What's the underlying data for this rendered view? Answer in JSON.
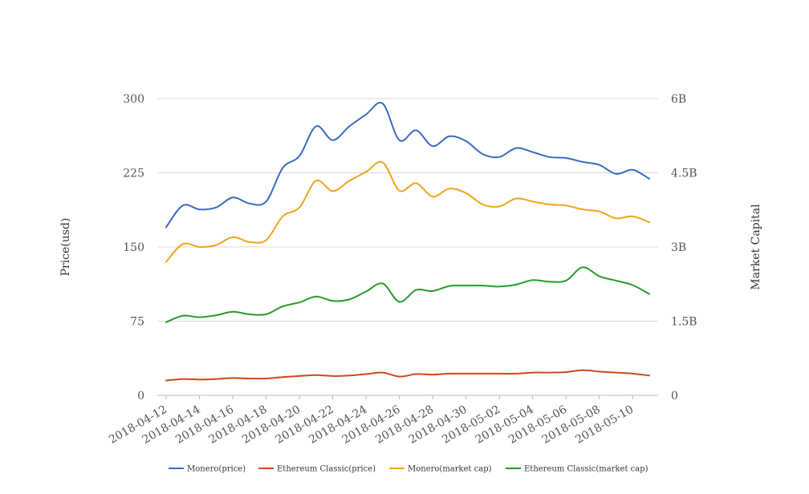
{
  "chart_data": {
    "type": "line",
    "x": [
      "2018-04-12",
      "2018-04-13",
      "2018-04-14",
      "2018-04-15",
      "2018-04-16",
      "2018-04-17",
      "2018-04-18",
      "2018-04-19",
      "2018-04-20",
      "2018-04-21",
      "2018-04-22",
      "2018-04-23",
      "2018-04-24",
      "2018-04-25",
      "2018-04-26",
      "2018-04-27",
      "2018-04-28",
      "2018-04-29",
      "2018-04-30",
      "2018-05-01",
      "2018-05-02",
      "2018-05-03",
      "2018-05-04",
      "2018-05-05",
      "2018-05-06",
      "2018-05-07",
      "2018-05-08",
      "2018-05-09",
      "2018-05-10",
      "2018-05-11"
    ],
    "x_tick_labels": [
      "2018-04-12",
      "2018-04-14",
      "2018-04-16",
      "2018-04-18",
      "2018-04-20",
      "2018-04-22",
      "2018-04-24",
      "2018-04-26",
      "2018-04-28",
      "2018-04-30",
      "2018-05-02",
      "2018-05-04",
      "2018-05-06",
      "2018-05-08",
      "2018-05-10"
    ],
    "ylabel_left": "Price(usd)",
    "ylabel_right": "Market Capital",
    "ylim_left": [
      0,
      300
    ],
    "ylim_right": [
      0,
      6000000000
    ],
    "yticks_left": [
      "0",
      "75",
      "150",
      "225",
      "300"
    ],
    "yticks_right": [
      "0",
      "1.5B",
      "3B",
      "4.5B",
      "6B"
    ],
    "grid": true,
    "legend_position": "bottom",
    "series": [
      {
        "name": "Monero(price)",
        "axis": "left",
        "color": "#3a6bbf",
        "values": [
          170,
          192,
          188,
          190,
          200,
          194,
          196,
          230,
          242,
          272,
          258,
          272,
          284,
          295,
          258,
          268,
          252,
          262,
          257,
          244,
          241,
          250,
          246,
          241,
          240,
          236,
          233,
          224,
          228,
          219
        ]
      },
      {
        "name": "Ethereum Classic(price)",
        "axis": "left",
        "color": "#cc4a1a",
        "values": [
          15,
          16.5,
          16,
          16.5,
          17.5,
          17,
          17,
          18.5,
          19.5,
          20.5,
          19.5,
          20,
          21.5,
          23,
          19,
          21.5,
          21,
          22,
          22,
          22,
          22,
          22,
          23,
          23,
          23.5,
          25.5,
          24,
          23,
          22,
          20
        ]
      },
      {
        "name": "Monero(market cap)",
        "axis": "right",
        "color": "#eea51a",
        "values": [
          2700000000,
          3060000000,
          3000000000,
          3040000000,
          3200000000,
          3100000000,
          3140000000,
          3620000000,
          3800000000,
          4340000000,
          4130000000,
          4340000000,
          4520000000,
          4710000000,
          4140000000,
          4290000000,
          4020000000,
          4180000000,
          4090000000,
          3860000000,
          3820000000,
          3980000000,
          3920000000,
          3860000000,
          3840000000,
          3760000000,
          3720000000,
          3580000000,
          3620000000,
          3500000000
        ]
      },
      {
        "name": "Ethereum Classic(market cap)",
        "axis": "right",
        "color": "#2a9a2a",
        "values": [
          1480000000,
          1610000000,
          1580000000,
          1620000000,
          1690000000,
          1640000000,
          1640000000,
          1800000000,
          1880000000,
          2000000000,
          1910000000,
          1940000000,
          2100000000,
          2260000000,
          1890000000,
          2130000000,
          2110000000,
          2210000000,
          2220000000,
          2220000000,
          2200000000,
          2240000000,
          2330000000,
          2300000000,
          2320000000,
          2590000000,
          2410000000,
          2320000000,
          2230000000,
          2050000000
        ]
      }
    ]
  }
}
